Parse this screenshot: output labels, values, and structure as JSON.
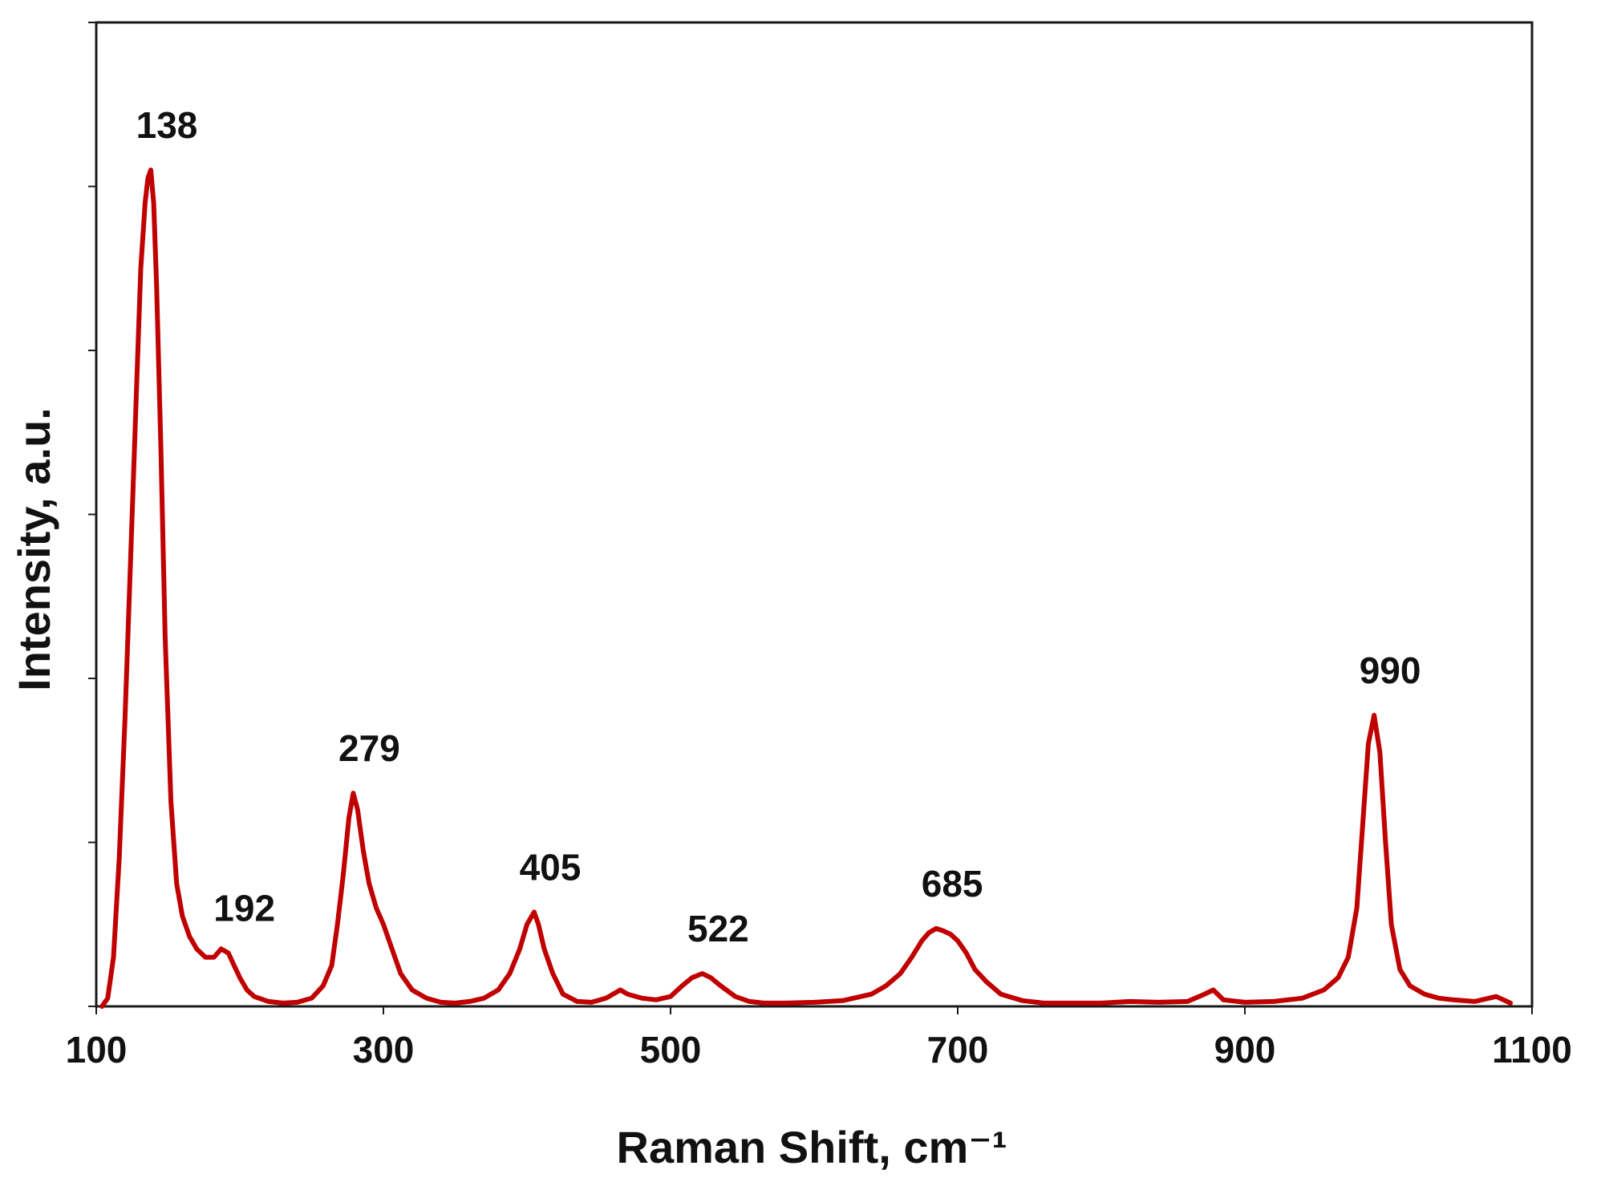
{
  "colors": {
    "series": "#C00000",
    "axis": "#1a1a1a",
    "background": "#ffffff"
  },
  "chart_data": {
    "type": "line",
    "title": "",
    "xlabel": "Raman Shift, cm⁻¹",
    "ylabel": "Intensity, a.u.",
    "xlim": [
      100,
      1100
    ],
    "ylim": [
      0,
      1.2
    ],
    "grid": false,
    "legend": "none",
    "x_ticks": [
      "100",
      "300",
      "500",
      "700",
      "900",
      "1100"
    ],
    "y_ticks_count": 6,
    "y_tick_labels_shown": false,
    "series": [
      {
        "x": [
          104,
          108,
          112,
          116,
          120,
          124,
          128,
          131,
          134,
          136,
          138,
          140,
          142,
          145,
          148,
          152,
          156,
          160,
          165,
          170,
          176,
          182,
          187,
          192,
          196,
          200,
          205,
          210,
          220,
          230,
          240,
          250,
          258,
          264,
          268,
          272,
          276,
          279,
          282,
          286,
          290,
          295,
          300,
          306,
          312,
          320,
          330,
          340,
          350,
          360,
          370,
          380,
          388,
          395,
          400,
          405,
          408,
          412,
          418,
          425,
          435,
          445,
          455,
          460,
          465,
          470,
          480,
          490,
          500,
          508,
          515,
          522,
          528,
          535,
          545,
          555,
          565,
          580,
          600,
          620,
          640,
          650,
          660,
          668,
          675,
          680,
          685,
          690,
          695,
          700,
          706,
          712,
          720,
          730,
          745,
          760,
          780,
          800,
          820,
          840,
          860,
          872,
          878,
          885,
          900,
          920,
          940,
          955,
          965,
          972,
          978,
          982,
          986,
          990,
          994,
          998,
          1002,
          1008,
          1015,
          1025,
          1035,
          1045,
          1060,
          1075,
          1085
        ],
        "y": [
          0.0,
          0.01,
          0.06,
          0.18,
          0.35,
          0.55,
          0.75,
          0.9,
          0.98,
          1.01,
          1.02,
          0.98,
          0.88,
          0.68,
          0.45,
          0.25,
          0.15,
          0.11,
          0.085,
          0.07,
          0.06,
          0.06,
          0.07,
          0.065,
          0.05,
          0.035,
          0.02,
          0.012,
          0.006,
          0.004,
          0.005,
          0.01,
          0.025,
          0.05,
          0.1,
          0.16,
          0.23,
          0.26,
          0.24,
          0.19,
          0.15,
          0.12,
          0.1,
          0.07,
          0.04,
          0.02,
          0.01,
          0.005,
          0.004,
          0.006,
          0.01,
          0.02,
          0.04,
          0.07,
          0.1,
          0.115,
          0.1,
          0.07,
          0.04,
          0.015,
          0.006,
          0.005,
          0.01,
          0.015,
          0.02,
          0.015,
          0.01,
          0.008,
          0.012,
          0.025,
          0.035,
          0.04,
          0.035,
          0.025,
          0.012,
          0.006,
          0.004,
          0.004,
          0.005,
          0.007,
          0.015,
          0.025,
          0.04,
          0.06,
          0.08,
          0.09,
          0.095,
          0.092,
          0.088,
          0.08,
          0.065,
          0.045,
          0.03,
          0.015,
          0.007,
          0.004,
          0.004,
          0.004,
          0.006,
          0.005,
          0.006,
          0.015,
          0.02,
          0.008,
          0.005,
          0.006,
          0.01,
          0.02,
          0.035,
          0.06,
          0.12,
          0.22,
          0.32,
          0.355,
          0.31,
          0.2,
          0.1,
          0.045,
          0.025,
          0.015,
          0.01,
          0.008,
          0.006,
          0.012,
          0.004
        ]
      }
    ],
    "annotations": [
      {
        "x": 138,
        "y": 1.02,
        "text": "138"
      },
      {
        "x": 192,
        "y": 0.065,
        "text": "192"
      },
      {
        "x": 279,
        "y": 0.26,
        "text": "279"
      },
      {
        "x": 405,
        "y": 0.115,
        "text": "405"
      },
      {
        "x": 522,
        "y": 0.04,
        "text": "522"
      },
      {
        "x": 685,
        "y": 0.095,
        "text": "685"
      },
      {
        "x": 990,
        "y": 0.355,
        "text": "990"
      }
    ]
  }
}
